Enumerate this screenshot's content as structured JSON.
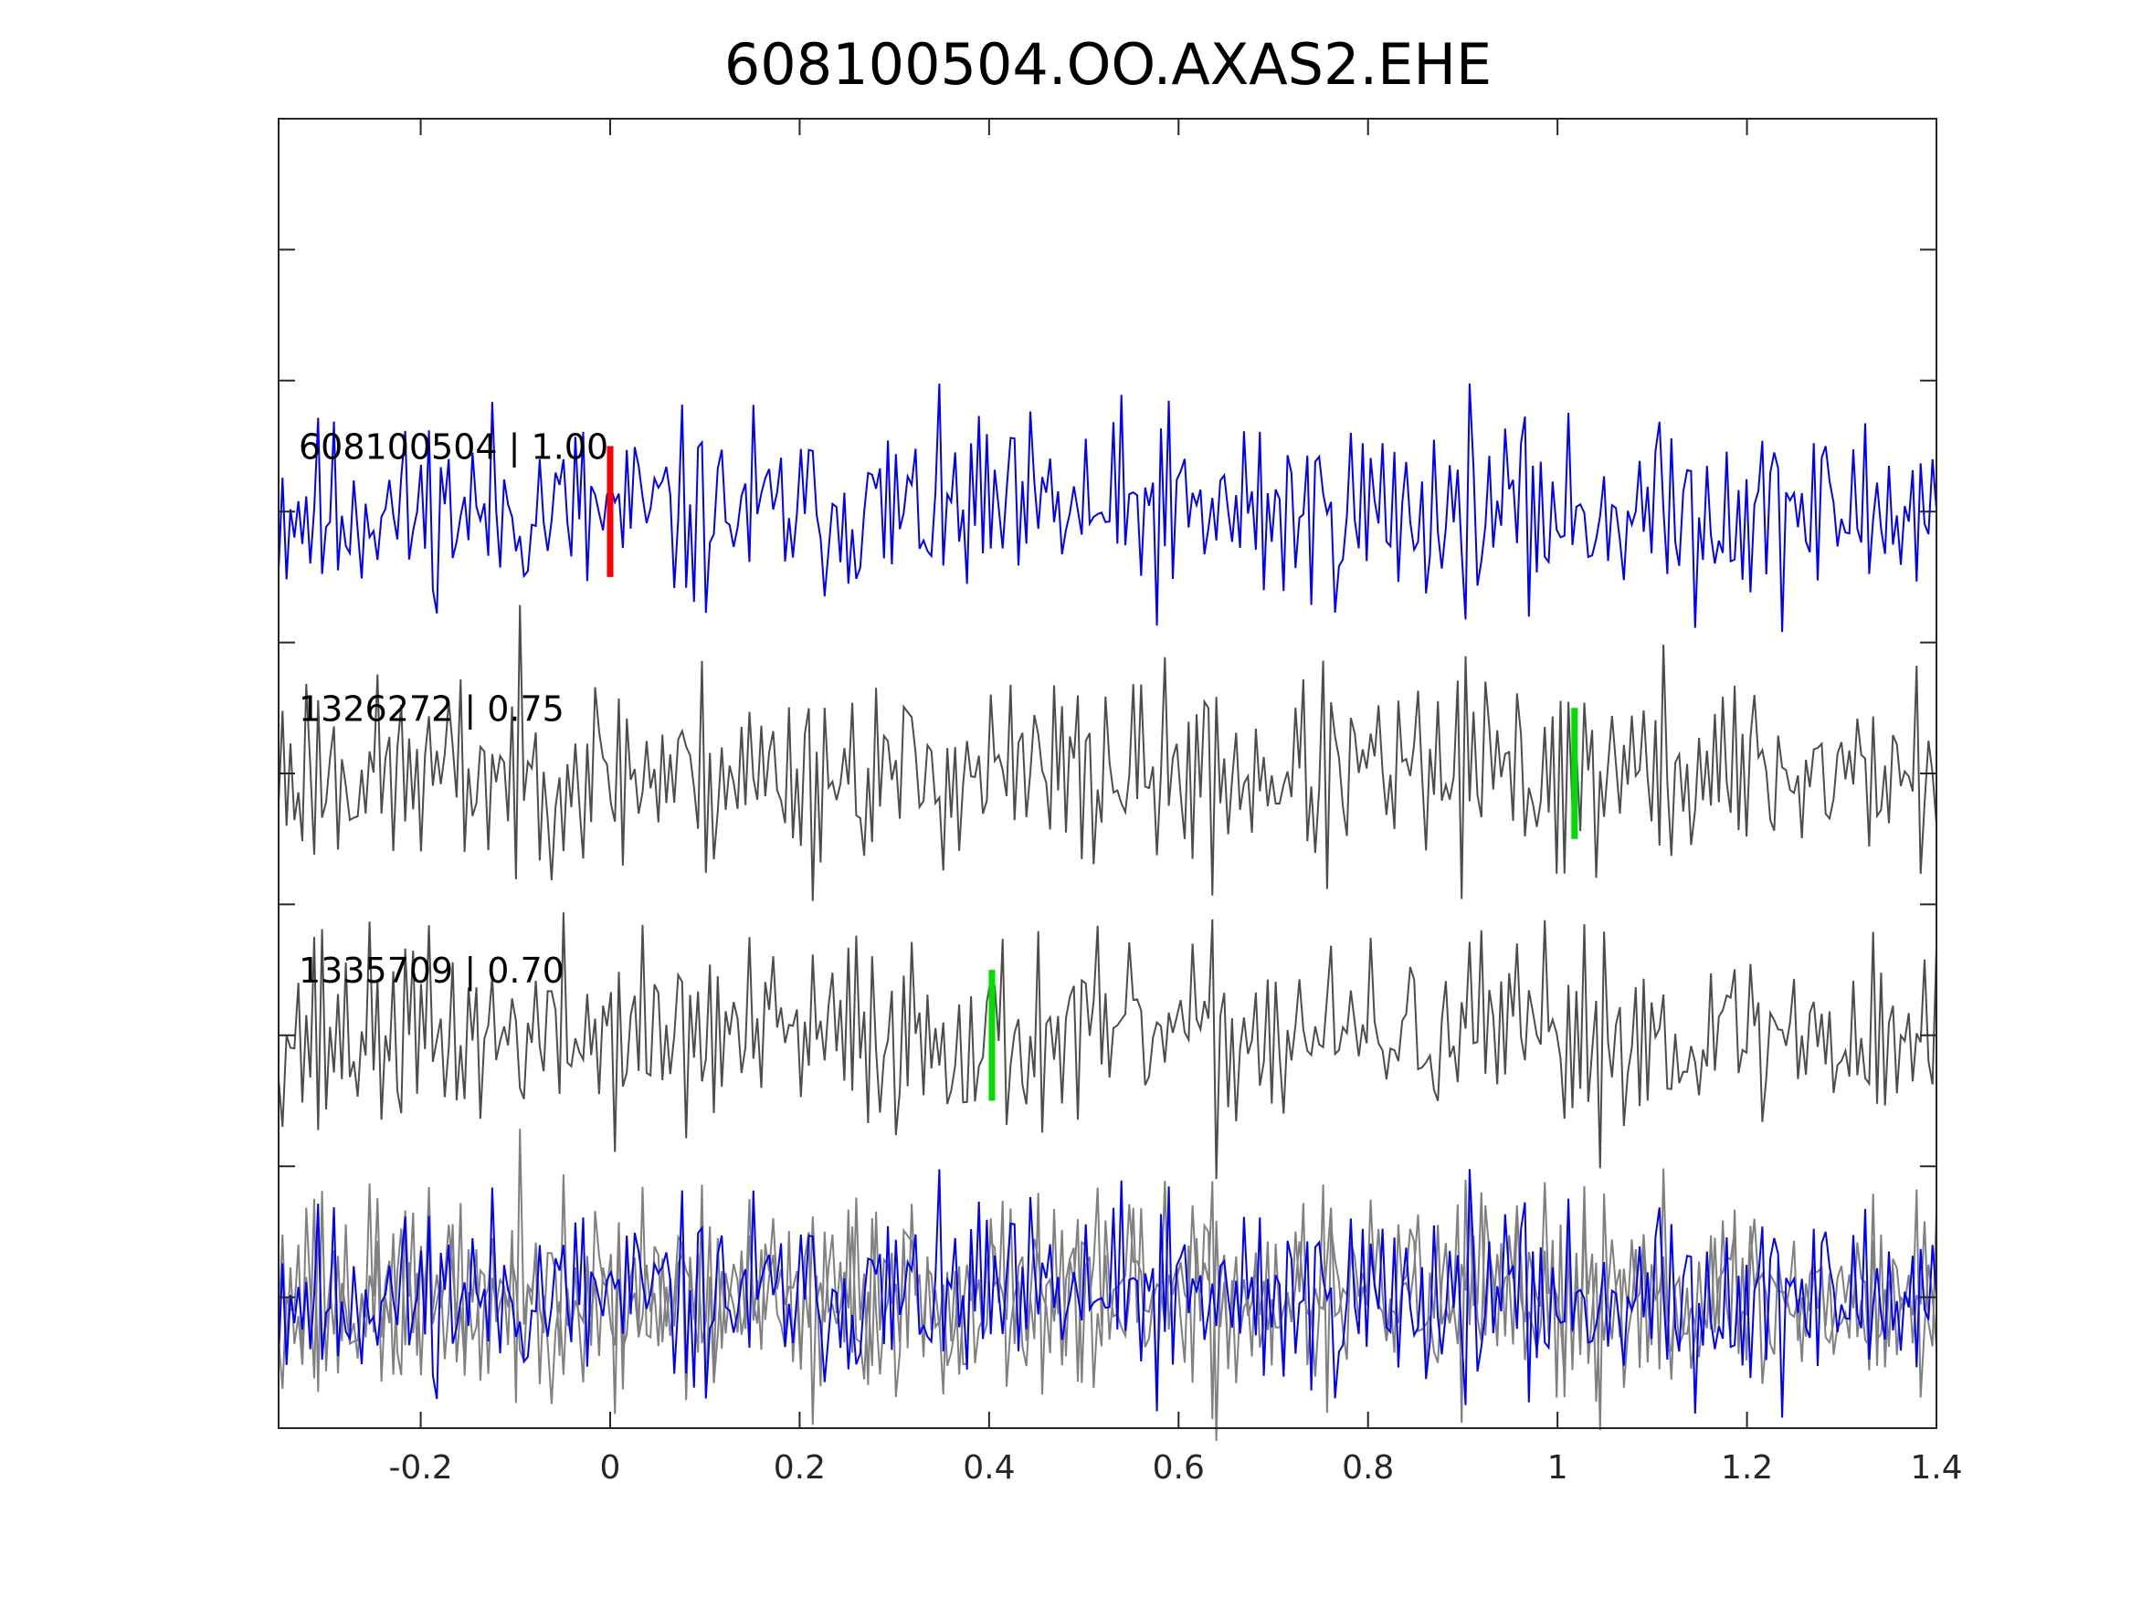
{
  "chart_data": {
    "type": "line",
    "title": "608100504.OO.AXAS2.EHE",
    "xlabel": "",
    "ylabel": "",
    "xlim": [
      -0.35,
      1.4
    ],
    "xticks": [
      -0.2,
      0,
      0.2,
      0.4,
      0.6,
      0.8,
      1,
      1.2,
      1.4
    ],
    "xtick_labels": [
      "-0.2",
      "0",
      "0.2",
      "0.4",
      "0.6",
      "0.8",
      "1",
      "1.2",
      "1.4"
    ],
    "ylim": [
      -4.5,
      0.5
    ],
    "yticks": [
      -4,
      -3.5,
      -3,
      -2.5,
      -2,
      -1.5,
      -1,
      -0.5,
      0
    ],
    "grid": false,
    "traces": [
      {
        "label": "608100504 | 1.00",
        "offset": -1,
        "color": "#0000ff",
        "pick_time": 0.0,
        "pick_color": "#ff0000",
        "seed": 11
      },
      {
        "label": "1326272 | 0.75",
        "offset": -2,
        "color": "#4d4d4d",
        "pick_time": 1.018,
        "pick_color": "#00dd00",
        "seed": 23
      },
      {
        "label": "1335709 | 0.70",
        "offset": -3,
        "color": "#4d4d4d",
        "pick_time": 0.403,
        "pick_color": "#00dd00",
        "seed": 37
      }
    ],
    "overlay": {
      "offset": -4,
      "primary_color": "#0000ff",
      "secondary_color": "#808080"
    }
  }
}
